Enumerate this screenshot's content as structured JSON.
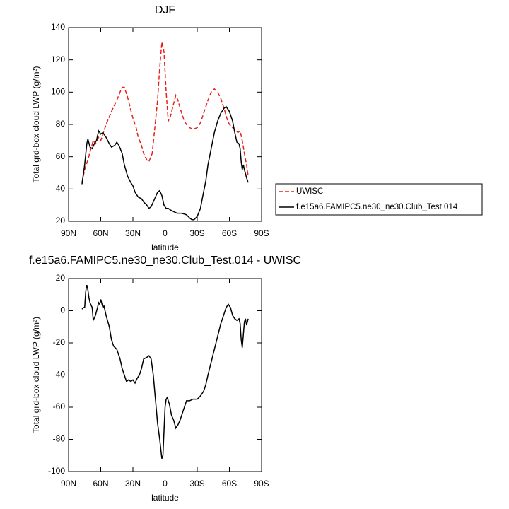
{
  "chart_data": [
    {
      "type": "line",
      "title": "DJF",
      "xlabel": "latitude",
      "ylabel": "Total grd-box cloud LWP (g/m²)",
      "xlim": [
        90,
        -90
      ],
      "xticks": [
        {
          "value": 90,
          "label": "90N"
        },
        {
          "value": 60,
          "label": "60N"
        },
        {
          "value": 30,
          "label": "30N"
        },
        0,
        {
          "value": -30,
          "label": "30S"
        },
        {
          "value": -60,
          "label": "60S"
        },
        {
          "value": -90,
          "label": "90S"
        }
      ],
      "ylim": [
        20,
        140
      ],
      "yticks": [
        20,
        40,
        60,
        80,
        100,
        120,
        140
      ],
      "legend": "outside right",
      "series": [
        {
          "name": "UWISC",
          "color": "#e8201a",
          "dash": "dashed",
          "x": [
            77.5,
            75,
            72,
            70,
            67,
            65,
            62,
            60,
            57,
            55,
            50,
            45,
            42,
            40,
            38,
            35,
            32,
            30,
            27,
            25,
            22,
            20,
            17,
            15,
            12,
            10,
            7,
            5,
            3,
            1,
            -1,
            -3,
            -5,
            -8,
            -10,
            -12,
            -15,
            -18,
            -20,
            -23,
            -26,
            -30,
            -33,
            -36,
            -40,
            -43,
            -46,
            -49,
            -52,
            -55,
            -58,
            -60,
            -63,
            -66,
            -68,
            -70,
            -72,
            -74,
            -76,
            -77.5
          ],
          "values": [
            44,
            52,
            58,
            63,
            70,
            68,
            72,
            70,
            76,
            80,
            88,
            95,
            100,
            103,
            103,
            97,
            89,
            84,
            78,
            72,
            67,
            62,
            58,
            57,
            62,
            75,
            95,
            115,
            131,
            125,
            100,
            82,
            85,
            93,
            98,
            95,
            88,
            82,
            80,
            78,
            77,
            78,
            81,
            87,
            95,
            100,
            102,
            100,
            96,
            90,
            83,
            80,
            78,
            76,
            75,
            76,
            70,
            62,
            55,
            48
          ]
        },
        {
          "name": "f.e15a6.FAMIPC5.ne30_ne30.Club_Test.014",
          "color": "#000000",
          "dash": "solid",
          "x": [
            77.5,
            75,
            73,
            72,
            70,
            68,
            66,
            64,
            62,
            60,
            58,
            55,
            52,
            50,
            47,
            45,
            43,
            40,
            38,
            35,
            32,
            30,
            28,
            25,
            22,
            20,
            17,
            15,
            13,
            11,
            9,
            7,
            5,
            3,
            1,
            -1,
            -3,
            -5,
            -8,
            -11,
            -15,
            -18,
            -20,
            -23,
            -25,
            -27,
            -30,
            -33,
            -35,
            -38,
            -40,
            -43,
            -46,
            -49,
            -52,
            -55,
            -57,
            -60,
            -63,
            -65,
            -67,
            -69,
            -70,
            -71,
            -72,
            -73,
            -74,
            -76,
            -77.5
          ],
          "values": [
            43,
            55,
            68,
            71,
            66,
            65,
            68,
            70,
            76,
            74,
            75,
            72,
            68,
            66,
            67,
            69,
            67,
            62,
            55,
            48,
            44,
            42,
            38,
            35,
            34,
            32,
            30,
            28,
            29,
            32,
            35,
            38,
            39,
            36,
            30,
            28,
            28,
            27,
            26,
            25,
            25,
            24.5,
            24,
            22,
            21,
            21,
            23,
            28,
            35,
            45,
            55,
            65,
            75,
            82,
            87,
            90,
            91,
            88,
            82,
            75,
            69,
            68,
            65,
            57,
            52,
            55,
            52,
            47,
            44
          ]
        }
      ]
    },
    {
      "type": "line",
      "title": "f.e15a6.FAMIPC5.ne30_ne30.Club_Test.014 - UWISC",
      "xlabel": "latitude",
      "ylabel": "Total grd-box cloud LWP (g/m²)",
      "xlim": [
        90,
        -90
      ],
      "xticks": [
        {
          "value": 90,
          "label": "90N"
        },
        {
          "value": 60,
          "label": "60N"
        },
        {
          "value": 30,
          "label": "30N"
        },
        0,
        {
          "value": -30,
          "label": "30S"
        },
        {
          "value": -60,
          "label": "60S"
        },
        {
          "value": -90,
          "label": "90S"
        }
      ],
      "ylim": [
        -100,
        20
      ],
      "yticks": [
        -100,
        -80,
        -60,
        -40,
        -20,
        0,
        20
      ],
      "series": [
        {
          "color": "#000000",
          "dash": "solid",
          "x": [
            77.5,
            76,
            75,
            74,
            73,
            72,
            71,
            70,
            68,
            67,
            65,
            63,
            62,
            61,
            60,
            58,
            57,
            55,
            52,
            50,
            48,
            45,
            42,
            40,
            38,
            36,
            34,
            32,
            30,
            28,
            26,
            24,
            22,
            20,
            17,
            15,
            13,
            11,
            9,
            7,
            5,
            3,
            2,
            1,
            0,
            -1,
            -2,
            -4,
            -6,
            -8,
            -10,
            -12,
            -14,
            -16,
            -18,
            -20,
            -23,
            -26,
            -30,
            -33,
            -36,
            -38,
            -40,
            -43,
            -46,
            -49,
            -52,
            -55,
            -57,
            -59,
            -61,
            -63,
            -65,
            -67,
            -69,
            -70,
            -71,
            -72,
            -73,
            -74,
            -75,
            -76,
            -77.5
          ],
          "values": [
            1,
            2,
            2,
            12,
            16,
            13,
            8,
            5,
            2,
            -6,
            -3,
            2,
            5,
            4,
            7,
            2,
            3,
            -3,
            -10,
            -18,
            -22,
            -24,
            -30,
            -36,
            -40,
            -44,
            -43,
            -44,
            -43,
            -45,
            -42,
            -40,
            -36,
            -30,
            -29,
            -28,
            -30,
            -40,
            -55,
            -70,
            -80,
            -92,
            -90,
            -75,
            -60,
            -55,
            -54,
            -58,
            -65,
            -68,
            -73,
            -71,
            -68,
            -64,
            -60,
            -56,
            -56,
            -55,
            -55,
            -53,
            -50,
            -46,
            -40,
            -32,
            -24,
            -16,
            -8,
            -2,
            2,
            4,
            2,
            -3,
            -5,
            -6,
            -5,
            -8,
            -18,
            -23,
            -15,
            -7,
            -5,
            -9,
            -5
          ]
        }
      ]
    }
  ]
}
